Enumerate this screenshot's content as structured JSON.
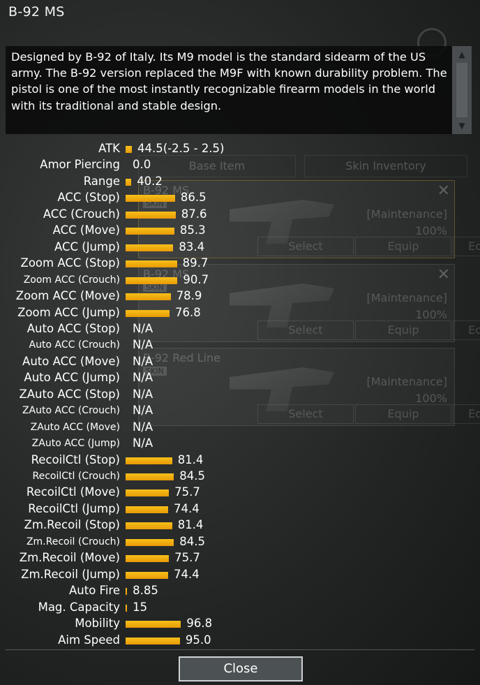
{
  "title": "B-92 MS",
  "description": "Designed by B-92 of Italy. Its M9 model is the standard sidearm of the US army. The B-92 version replaced the M9F with known durability problem. The pistol is one of the most instantly recognizable firearm models in the world with its traditional and stable design.",
  "background": {
    "tabs": [
      "Base Item",
      "Skin Inventory"
    ],
    "cards": [
      {
        "name": "B-92 MS",
        "skin_tag": "SKIN",
        "status": "[Maintenance]",
        "percent": "100%",
        "buttons": [
          "Select",
          "Equip",
          "Equip on all"
        ]
      },
      {
        "name": "B-92 MS",
        "skin_tag": "SKIN",
        "status": "[Maintenance]",
        "percent": "100%",
        "buttons": [
          "Select",
          "Equip",
          "Equip on all"
        ]
      },
      {
        "name": "B-92 Red Line",
        "skin_tag": "SKIN",
        "status": "[Maintenance]",
        "percent": "100%",
        "buttons": [
          "Select",
          "Equip",
          "Equip on all"
        ]
      }
    ]
  },
  "bar_max": 100,
  "stats": [
    {
      "label": "ATK",
      "value": "44.5(-2.5 - 2.5)",
      "level": 11
    },
    {
      "label": "Amor Piercing",
      "value": "0.0",
      "level": 0
    },
    {
      "label": "Range",
      "value": "40.2",
      "level": 10
    },
    {
      "label": "ACC (Stop)",
      "value": "86.5",
      "level": 86.5
    },
    {
      "label": "ACC (Crouch)",
      "value": "87.6",
      "level": 87.6
    },
    {
      "label": "ACC (Move)",
      "value": "85.3",
      "level": 85.3
    },
    {
      "label": "ACC (Jump)",
      "value": "83.4",
      "level": 83.4
    },
    {
      "label": "Zoom ACC (Stop)",
      "value": "89.7",
      "level": 89.7
    },
    {
      "label": "Zoom ACC (Crouch)",
      "value": "90.7",
      "level": 90.7,
      "small": true
    },
    {
      "label": "Zoom ACC (Move)",
      "value": "78.9",
      "level": 78.9
    },
    {
      "label": "Zoom ACC (Jump)",
      "value": "76.8",
      "level": 76.8
    },
    {
      "label": "Auto ACC (Stop)",
      "value": "N/A",
      "level": null
    },
    {
      "label": "Auto ACC (Crouch)",
      "value": "N/A",
      "level": null,
      "small": true
    },
    {
      "label": "Auto ACC (Move)",
      "value": "N/A",
      "level": null
    },
    {
      "label": "Auto ACC (Jump)",
      "value": "N/A",
      "level": null
    },
    {
      "label": "ZAuto ACC (Stop)",
      "value": "N/A",
      "level": null
    },
    {
      "label": "ZAuto ACC (Crouch)",
      "value": "N/A",
      "level": null,
      "small": true
    },
    {
      "label": "ZAuto ACC (Move)",
      "value": "N/A",
      "level": null,
      "small": true
    },
    {
      "label": "ZAuto ACC (Jump)",
      "value": "N/A",
      "level": null,
      "small": true
    },
    {
      "label": "RecoilCtl (Stop)",
      "value": "81.4",
      "level": 81.4
    },
    {
      "label": "RecoilCtl (Crouch)",
      "value": "84.5",
      "level": 84.5,
      "small": true
    },
    {
      "label": "RecoilCtl (Move)",
      "value": "75.7",
      "level": 75.7
    },
    {
      "label": "RecoilCtl (Jump)",
      "value": "74.4",
      "level": 74.4
    },
    {
      "label": "Zm.Recoil (Stop)",
      "value": "81.4",
      "level": 81.4
    },
    {
      "label": "Zm.Recoil (Crouch)",
      "value": "84.5",
      "level": 84.5,
      "small": true
    },
    {
      "label": "Zm.Recoil (Move)",
      "value": "75.7",
      "level": 75.7
    },
    {
      "label": "Zm.Recoil (Jump)",
      "value": "74.4",
      "level": 74.4
    },
    {
      "label": "Auto Fire",
      "value": "8.85",
      "level": 2.5
    },
    {
      "label": "Mag. Capacity",
      "value": "15",
      "level": 2.5
    },
    {
      "label": "Mobility",
      "value": "96.8",
      "level": 96.8
    },
    {
      "label": "Aim Speed",
      "value": "95.0",
      "level": 95.0
    }
  ],
  "close_label": "Close"
}
